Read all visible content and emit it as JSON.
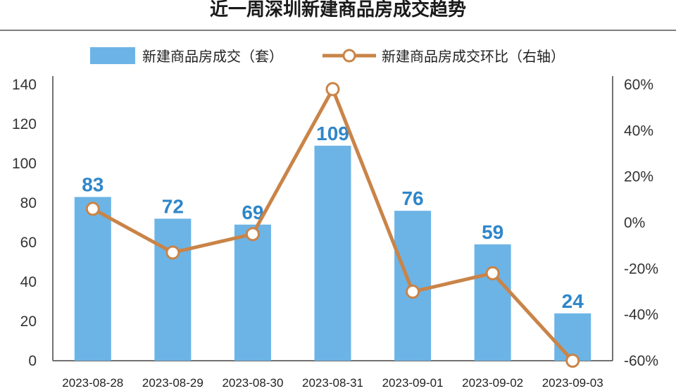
{
  "chart_data": {
    "type": "bar",
    "title": "近一周深圳新建商品房成交趋势",
    "categories": [
      "2023-08-28",
      "2023-08-29",
      "2023-08-30",
      "2023-08-31",
      "2023-09-01",
      "2023-09-02",
      "2023-09-03"
    ],
    "series": [
      {
        "name": "新建商品房成交（套）",
        "type": "bar",
        "axis": "left",
        "values": [
          83,
          72,
          69,
          109,
          76,
          59,
          24
        ],
        "data_labels": [
          "83",
          "72",
          "69",
          "109",
          "76",
          "59",
          "24"
        ],
        "color": "#6cb4e6"
      },
      {
        "name": "新建商品房成交环比（右轴）",
        "type": "line",
        "axis": "right",
        "values": [
          6,
          -13,
          -5,
          58,
          -30,
          -22,
          -60
        ],
        "unit": "%",
        "color": "#c98448"
      }
    ],
    "y_left": {
      "min": 0,
      "max": 140,
      "ticks": [
        "0",
        "20",
        "40",
        "60",
        "80",
        "100",
        "120",
        "140"
      ]
    },
    "y_right": {
      "min": -60,
      "max": 60,
      "ticks": [
        "-60%",
        "-40%",
        "-20%",
        "0%",
        "20%",
        "40%",
        "60%"
      ]
    },
    "legend_position": "top",
    "grid": false
  }
}
